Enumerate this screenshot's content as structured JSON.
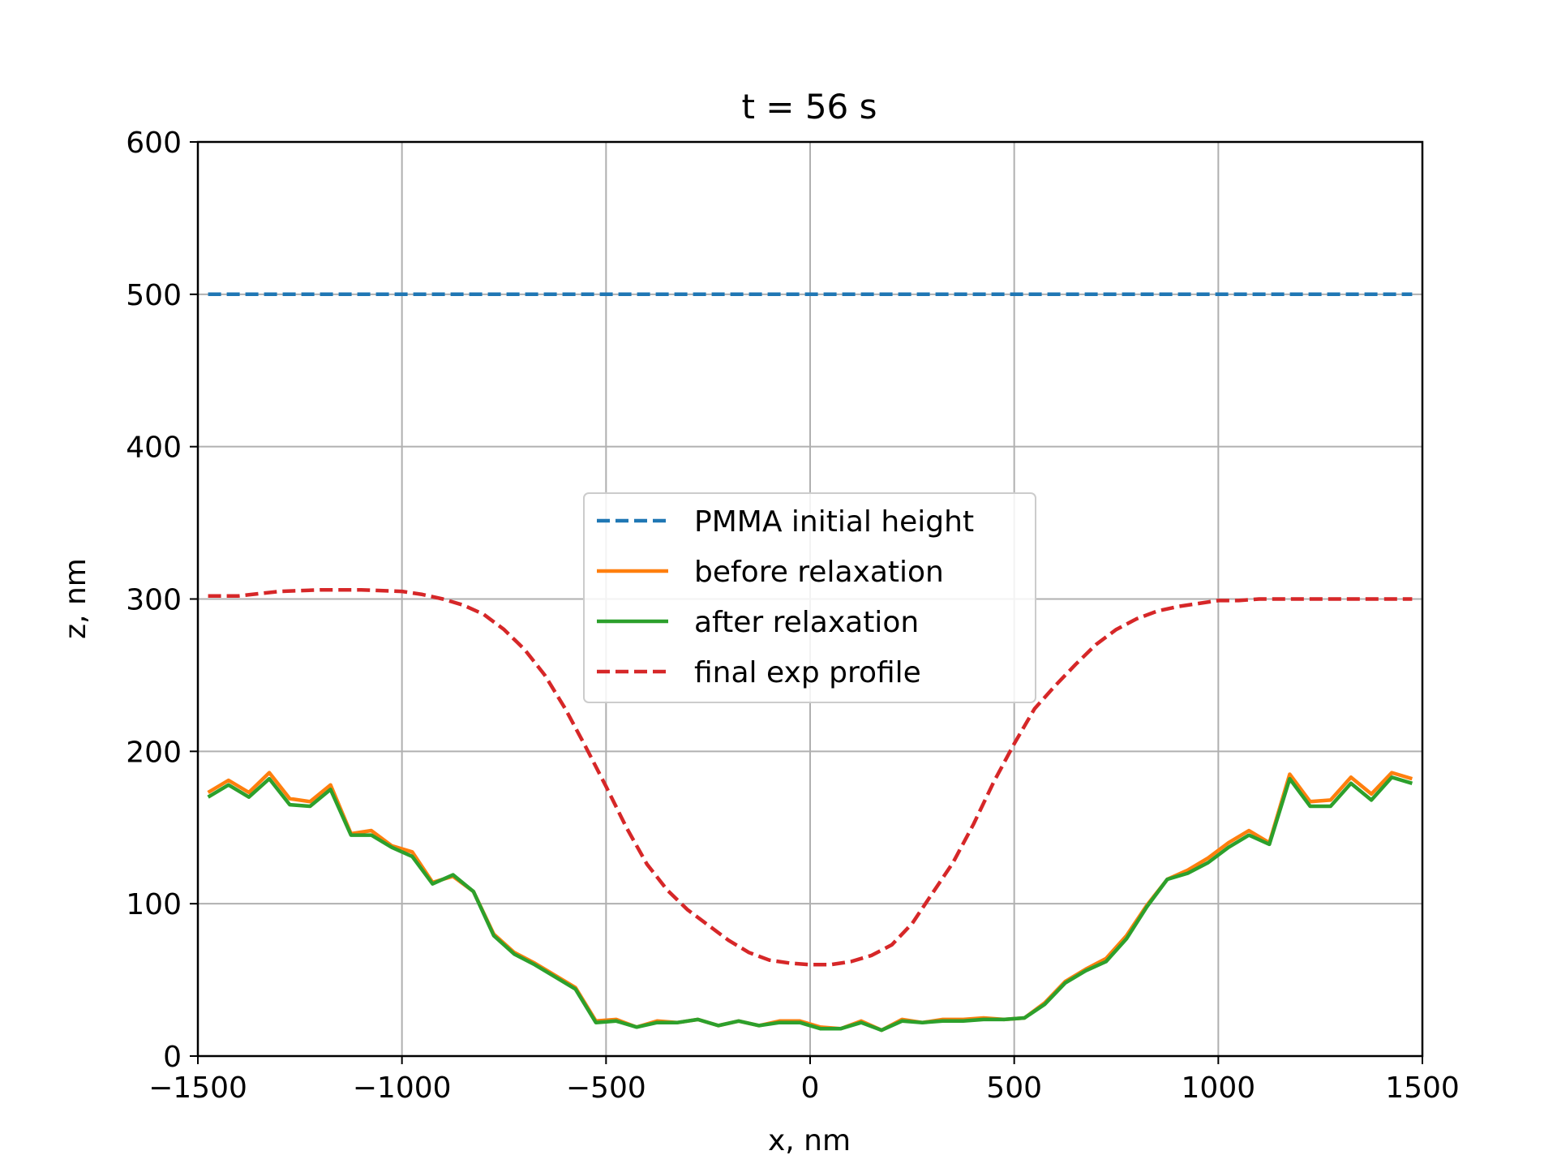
{
  "chart_data": {
    "type": "line",
    "title": "t = 56 s",
    "xlabel": "x, nm",
    "ylabel": "z, nm",
    "xlim": [
      -1500,
      1500
    ],
    "ylim": [
      0,
      600
    ],
    "xticks": [
      -1500,
      -1000,
      -500,
      0,
      500,
      1000,
      1500
    ],
    "xtick_labels": [
      "−1500",
      "−1000",
      "−500",
      "0",
      "500",
      "1000",
      "1500"
    ],
    "yticks": [
      0,
      100,
      200,
      300,
      400,
      500,
      600
    ],
    "ytick_labels": [
      "0",
      "100",
      "200",
      "300",
      "400",
      "500",
      "600"
    ],
    "grid": true,
    "legend_position": "center",
    "series": [
      {
        "name": "PMMA initial height",
        "color": "#1f77b4",
        "dash": "dashed",
        "x": [
          -1475,
          1475
        ],
        "y": [
          500,
          500
        ]
      },
      {
        "name": "before relaxation",
        "color": "#ff7f0e",
        "dash": "solid",
        "x": [
          -1475,
          -1425,
          -1375,
          -1325,
          -1275,
          -1225,
          -1175,
          -1125,
          -1075,
          -1025,
          -975,
          -925,
          -875,
          -825,
          -775,
          -725,
          -675,
          -625,
          -575,
          -525,
          -475,
          -425,
          -375,
          -325,
          -275,
          -225,
          -175,
          -125,
          -75,
          -25,
          25,
          75,
          125,
          175,
          225,
          275,
          325,
          375,
          425,
          475,
          525,
          575,
          625,
          675,
          725,
          775,
          825,
          875,
          925,
          975,
          1025,
          1075,
          1125,
          1175,
          1225,
          1275,
          1325,
          1375,
          1425,
          1475
        ],
        "y": [
          173,
          181,
          173,
          186,
          169,
          167,
          178,
          146,
          148,
          138,
          134,
          114,
          118,
          108,
          80,
          68,
          61,
          53,
          45,
          23,
          24,
          19,
          23,
          22,
          24,
          20,
          23,
          20,
          23,
          23,
          19,
          18,
          23,
          17,
          24,
          22,
          24,
          24,
          25,
          24,
          25,
          35,
          49,
          57,
          64,
          79,
          99,
          116,
          122,
          130,
          140,
          148,
          140,
          185,
          167,
          168,
          183,
          172,
          186,
          182
        ]
      },
      {
        "name": "after relaxation",
        "color": "#2ca02c",
        "dash": "solid",
        "x": [
          -1475,
          -1425,
          -1375,
          -1325,
          -1275,
          -1225,
          -1175,
          -1125,
          -1075,
          -1025,
          -975,
          -925,
          -875,
          -825,
          -775,
          -725,
          -675,
          -625,
          -575,
          -525,
          -475,
          -425,
          -375,
          -325,
          -275,
          -225,
          -175,
          -125,
          -75,
          -25,
          25,
          75,
          125,
          175,
          225,
          275,
          325,
          375,
          425,
          475,
          525,
          575,
          625,
          675,
          725,
          775,
          825,
          875,
          925,
          975,
          1025,
          1075,
          1125,
          1175,
          1225,
          1275,
          1325,
          1375,
          1425,
          1475
        ],
        "y": [
          170,
          178,
          170,
          182,
          165,
          164,
          175,
          145,
          145,
          137,
          131,
          113,
          119,
          108,
          79,
          67,
          60,
          52,
          44,
          22,
          23,
          19,
          22,
          22,
          24,
          20,
          23,
          20,
          22,
          22,
          18,
          18,
          22,
          17,
          23,
          22,
          23,
          23,
          24,
          24,
          25,
          34,
          48,
          56,
          62,
          77,
          98,
          116,
          120,
          127,
          137,
          145,
          139,
          182,
          164,
          164,
          179,
          168,
          183,
          179
        ]
      },
      {
        "name": "final exp profile",
        "color": "#d62728",
        "dash": "dashed",
        "x": [
          -1475,
          -1400,
          -1300,
          -1200,
          -1100,
          -1000,
          -950,
          -900,
          -850,
          -800,
          -750,
          -700,
          -650,
          -600,
          -550,
          -500,
          -450,
          -400,
          -350,
          -300,
          -250,
          -200,
          -150,
          -100,
          -50,
          0,
          50,
          100,
          150,
          200,
          250,
          300,
          350,
          400,
          450,
          500,
          550,
          600,
          650,
          700,
          750,
          800,
          850,
          900,
          950,
          1000,
          1050,
          1100,
          1200,
          1300,
          1400,
          1475
        ],
        "y": [
          302,
          302,
          305,
          306,
          306,
          305,
          303,
          300,
          296,
          290,
          280,
          267,
          250,
          228,
          203,
          177,
          150,
          126,
          109,
          96,
          86,
          76,
          68,
          63,
          61,
          60,
          60,
          62,
          66,
          73,
          87,
          107,
          127,
          152,
          180,
          205,
          228,
          243,
          257,
          270,
          280,
          287,
          292,
          295,
          297,
          299,
          299,
          300,
          300,
          300,
          300,
          300
        ]
      }
    ]
  }
}
